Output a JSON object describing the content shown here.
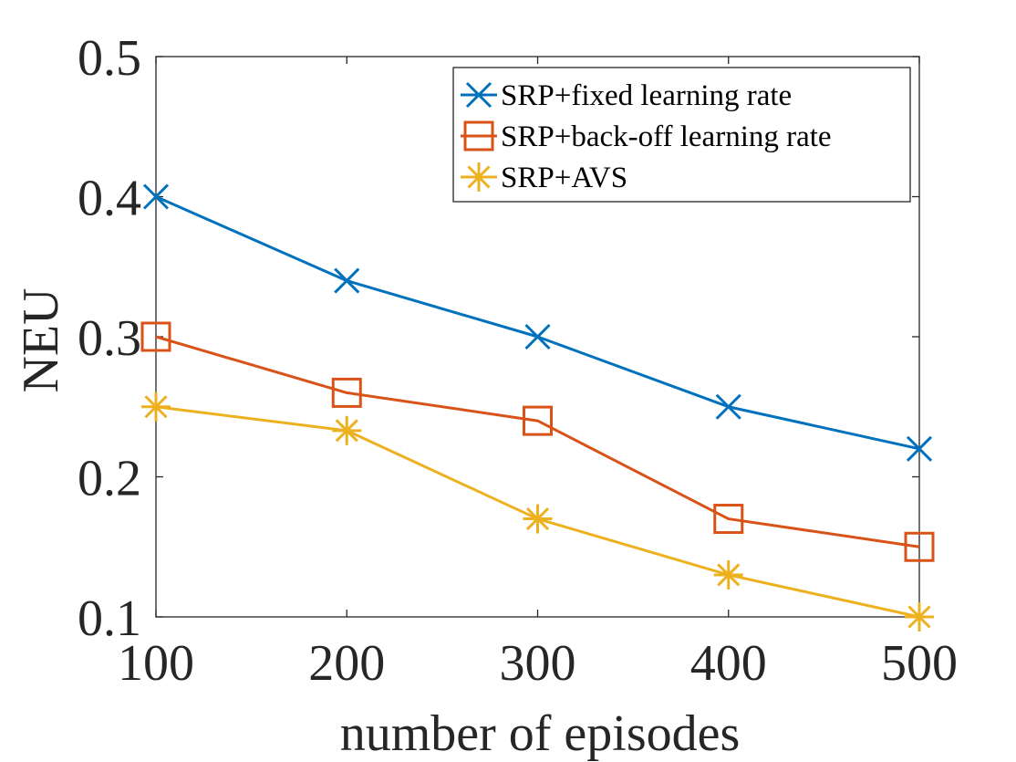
{
  "chart_data": {
    "type": "line",
    "title": "",
    "xlabel": "number of episodes",
    "ylabel": "NEU",
    "x": [
      100,
      200,
      300,
      400,
      500
    ],
    "xlim": [
      100,
      500
    ],
    "ylim": [
      0.1,
      0.5
    ],
    "xticks": [
      100,
      200,
      300,
      400,
      500
    ],
    "yticks": [
      0.1,
      0.2,
      0.3,
      0.4,
      0.5
    ],
    "xtick_labels": [
      "100",
      "200",
      "300",
      "400",
      "500"
    ],
    "ytick_labels": [
      "0.1",
      "0.2",
      "0.3",
      "0.4",
      "0.5"
    ],
    "grid": false,
    "legend_position": "top-right",
    "series": [
      {
        "name": "SRP+fixed learning rate",
        "values": [
          0.4,
          0.34,
          0.3,
          0.25,
          0.22
        ],
        "color": "#0072BD",
        "marker": "x"
      },
      {
        "name": "SRP+back-off learning rate",
        "values": [
          0.3,
          0.26,
          0.24,
          0.17,
          0.15
        ],
        "color": "#D95319",
        "marker": "square"
      },
      {
        "name": "SRP+AVS",
        "values": [
          0.25,
          0.233,
          0.17,
          0.13,
          0.1
        ],
        "color": "#EDB120",
        "marker": "asterisk"
      }
    ]
  }
}
